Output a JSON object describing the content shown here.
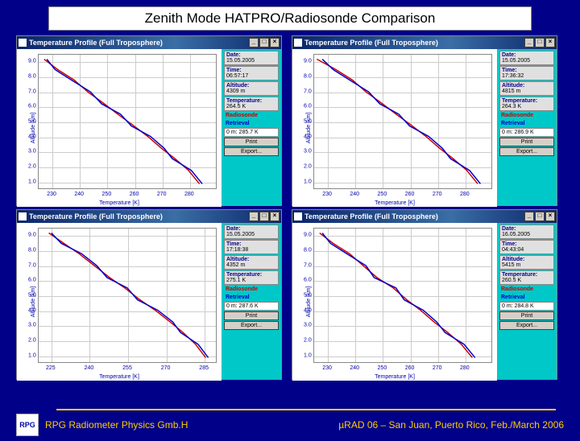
{
  "title": "Zenith Mode HATPRO/Radiosonde Comparison",
  "footer": {
    "left": "RPG Radiometer Physics Gmb.H",
    "right": "µRAD 06  – San Juan, Puerto Rico,  Feb./March  2006",
    "logo_text": "RPG"
  },
  "colors": {
    "slide_bg": "#000088",
    "panel_bg": "#00c8c8",
    "plot_bg": "#ffffff",
    "grid": "#cccccc",
    "axis_text": "#0000aa",
    "line1": "#cc0000",
    "line2": "#0000cc",
    "accent": "#ffcc00"
  },
  "common": {
    "window_title": "Temperature Profile (Full Troposphere)",
    "ylabel": "Altitude [km]",
    "xlabel": "Temperature [K]",
    "yticks": [
      "1.0",
      "2.0",
      "3.0",
      "4.0",
      "5.0",
      "6.0",
      "7.0",
      "8.0",
      "9.0"
    ],
    "ylim": [
      0.5,
      9.5
    ],
    "legend_red": "Radiosonde",
    "legend_blue": "Retrieval",
    "print_btn": "Print",
    "export_btn": "Export..."
  },
  "panels": [
    {
      "xticks": [
        "230",
        "240",
        "250",
        "260",
        "270",
        "280"
      ],
      "xlim": [
        225,
        290
      ],
      "side": {
        "date": "15.05.2005",
        "time": "06:57:17",
        "altitude": "4309 m",
        "temperature": "264.5 K",
        "readout": "0 m: 285.7 K"
      },
      "line_red": [
        [
          227,
          9.2
        ],
        [
          232,
          8.5
        ],
        [
          238,
          7.8
        ],
        [
          243,
          7.0
        ],
        [
          249,
          6.2
        ],
        [
          254,
          5.5
        ],
        [
          260,
          4.7
        ],
        [
          265,
          4.0
        ],
        [
          270,
          3.2
        ],
        [
          275,
          2.5
        ],
        [
          280,
          1.7
        ],
        [
          284,
          0.8
        ]
      ],
      "line_blue": [
        [
          228,
          9.2
        ],
        [
          231,
          8.5
        ],
        [
          237,
          7.8
        ],
        [
          244,
          7.0
        ],
        [
          248,
          6.2
        ],
        [
          255,
          5.5
        ],
        [
          259,
          4.7
        ],
        [
          266,
          4.0
        ],
        [
          271,
          3.2
        ],
        [
          274,
          2.5
        ],
        [
          281,
          1.7
        ],
        [
          285,
          0.8
        ]
      ]
    },
    {
      "xticks": [
        "230",
        "240",
        "250",
        "260",
        "270",
        "280"
      ],
      "xlim": [
        225,
        290
      ],
      "side": {
        "date": "15.05.2005",
        "time": "17:36:32",
        "altitude": "4815 m",
        "temperature": "264.3 K",
        "readout": "0 m: 286.9 K"
      },
      "line_red": [
        [
          226,
          9.2
        ],
        [
          233,
          8.5
        ],
        [
          239,
          7.8
        ],
        [
          244,
          7.0
        ],
        [
          250,
          6.2
        ],
        [
          255,
          5.5
        ],
        [
          261,
          4.7
        ],
        [
          266,
          4.0
        ],
        [
          271,
          3.2
        ],
        [
          276,
          2.5
        ],
        [
          281,
          1.7
        ],
        [
          285,
          0.8
        ]
      ],
      "line_blue": [
        [
          228,
          9.2
        ],
        [
          232,
          8.5
        ],
        [
          238,
          7.8
        ],
        [
          245,
          7.0
        ],
        [
          249,
          6.2
        ],
        [
          256,
          5.5
        ],
        [
          260,
          4.7
        ],
        [
          267,
          4.0
        ],
        [
          272,
          3.2
        ],
        [
          275,
          2.5
        ],
        [
          282,
          1.7
        ],
        [
          286,
          0.8
        ]
      ]
    },
    {
      "xticks": [
        "225",
        "240",
        "255",
        "270",
        "285"
      ],
      "xlim": [
        220,
        290
      ],
      "side": {
        "date": "15.05.2005",
        "time": "17:18:38",
        "altitude": "4352 m",
        "temperature": "275.1 K",
        "readout": "0 m: 287.6 K"
      },
      "line_red": [
        [
          224,
          9.2
        ],
        [
          230,
          8.5
        ],
        [
          236,
          7.8
        ],
        [
          242,
          7.0
        ],
        [
          248,
          6.2
        ],
        [
          254,
          5.5
        ],
        [
          260,
          4.7
        ],
        [
          266,
          4.0
        ],
        [
          272,
          3.2
        ],
        [
          277,
          2.5
        ],
        [
          282,
          1.7
        ],
        [
          286,
          0.8
        ]
      ],
      "line_blue": [
        [
          225,
          9.2
        ],
        [
          229,
          8.5
        ],
        [
          237,
          7.8
        ],
        [
          243,
          7.0
        ],
        [
          247,
          6.2
        ],
        [
          255,
          5.5
        ],
        [
          259,
          4.7
        ],
        [
          267,
          4.0
        ],
        [
          273,
          3.2
        ],
        [
          276,
          2.5
        ],
        [
          283,
          1.7
        ],
        [
          287,
          0.8
        ]
      ]
    },
    {
      "xticks": [
        "230",
        "240",
        "250",
        "260",
        "270",
        "280"
      ],
      "xlim": [
        225,
        290
      ],
      "side": {
        "date": "16.05.2005",
        "time": "04:43:04",
        "altitude": "5415 m",
        "temperature": "260.5 K",
        "readout": "0 m: 284.8 K"
      },
      "line_red": [
        [
          227,
          9.2
        ],
        [
          232,
          8.5
        ],
        [
          238,
          7.8
        ],
        [
          243,
          7.0
        ],
        [
          248,
          6.2
        ],
        [
          254,
          5.5
        ],
        [
          259,
          4.7
        ],
        [
          264,
          4.0
        ],
        [
          269,
          3.2
        ],
        [
          274,
          2.5
        ],
        [
          279,
          1.7
        ],
        [
          283,
          0.8
        ]
      ],
      "line_blue": [
        [
          228,
          9.2
        ],
        [
          231,
          8.5
        ],
        [
          237,
          7.8
        ],
        [
          244,
          7.0
        ],
        [
          247,
          6.2
        ],
        [
          255,
          5.5
        ],
        [
          258,
          4.7
        ],
        [
          265,
          4.0
        ],
        [
          270,
          3.2
        ],
        [
          273,
          2.5
        ],
        [
          280,
          1.7
        ],
        [
          284,
          0.8
        ]
      ]
    }
  ]
}
